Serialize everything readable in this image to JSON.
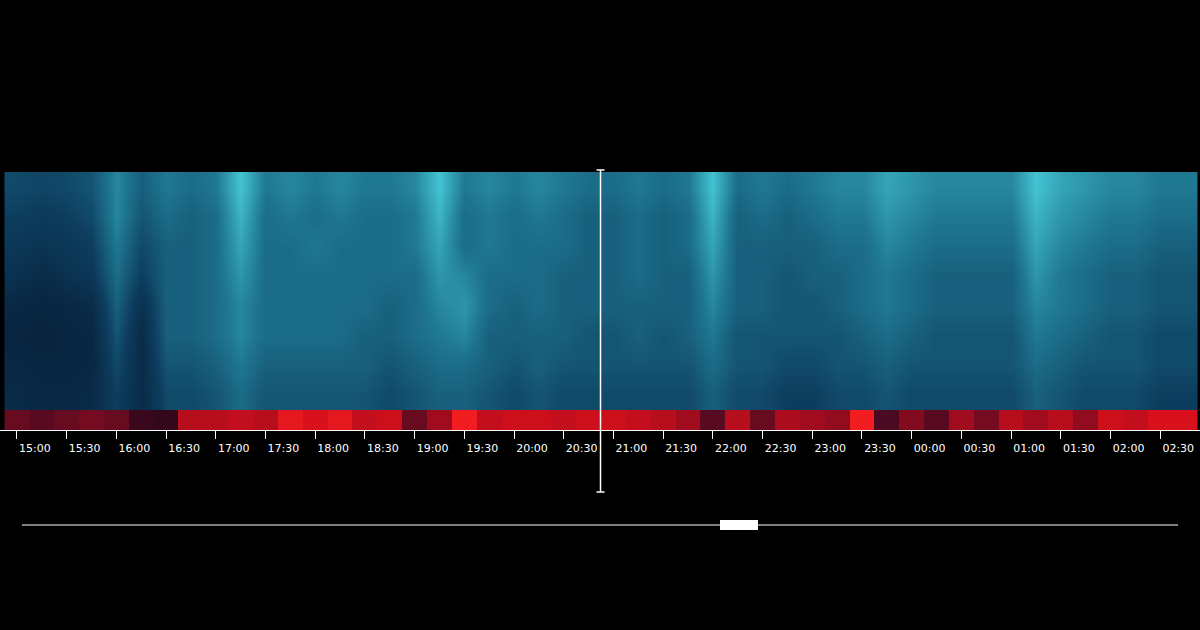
{
  "chart_data": {
    "type": "heatmap",
    "tick_labels": "x",
    "x": [
      15.0,
      15.25,
      15.5,
      15.75,
      16.0,
      16.25,
      16.5,
      16.75,
      17.0,
      17.25,
      17.5,
      17.75,
      18.0,
      18.25,
      18.5,
      18.75,
      19.0,
      19.25,
      19.5,
      19.75,
      20.0,
      20.25,
      20.5,
      20.75,
      21.0,
      21.25,
      21.5,
      21.75,
      22.0,
      22.25,
      22.5,
      22.75,
      23.0,
      23.25,
      23.5,
      23.75,
      24.0,
      24.25,
      24.5,
      24.75,
      25.0,
      25.25,
      25.5,
      25.75,
      26.0,
      26.25,
      26.5,
      26.75
    ],
    "xlim": [
      14.83,
      26.9
    ],
    "xticks": [
      {
        "value": 15.0,
        "label": "15:00"
      },
      {
        "value": 15.5,
        "label": "15:30"
      },
      {
        "value": 16.0,
        "label": "16:00"
      },
      {
        "value": 16.5,
        "label": "16:30"
      },
      {
        "value": 17.0,
        "label": "17:00"
      },
      {
        "value": 17.5,
        "label": "17:30"
      },
      {
        "value": 18.0,
        "label": "18:00"
      },
      {
        "value": 18.5,
        "label": "18:30"
      },
      {
        "value": 19.0,
        "label": "19:00"
      },
      {
        "value": 19.5,
        "label": "19:30"
      },
      {
        "value": 20.0,
        "label": "20:00"
      },
      {
        "value": 20.5,
        "label": "20:30"
      },
      {
        "value": 21.0,
        "label": "21:00"
      },
      {
        "value": 21.5,
        "label": "21:30"
      },
      {
        "value": 22.0,
        "label": "22:00"
      },
      {
        "value": 22.5,
        "label": "22:30"
      },
      {
        "value": 23.0,
        "label": "23:00"
      },
      {
        "value": 23.5,
        "label": "23:30"
      },
      {
        "value": 24.0,
        "label": "00:00"
      },
      {
        "value": 24.5,
        "label": "00:30"
      },
      {
        "value": 25.0,
        "label": "01:00"
      },
      {
        "value": 25.5,
        "label": "01:30"
      },
      {
        "value": 26.0,
        "label": "02:00"
      },
      {
        "value": 26.5,
        "label": "02:30"
      }
    ],
    "spectrogram": {
      "zlim": [
        0,
        1
      ],
      "z": [
        [
          0.15,
          0.12,
          0.12,
          0.15,
          0.3,
          0.15,
          0.35,
          0.35,
          0.4,
          0.5,
          0.4,
          0.4,
          0.4,
          0.4,
          0.4,
          0.35,
          0.4,
          0.45,
          0.45,
          0.4,
          0.35,
          0.4,
          0.35,
          0.35,
          0.35,
          0.35,
          0.35,
          0.35,
          0.45,
          0.35,
          0.35,
          0.3,
          0.3,
          0.35,
          0.35,
          0.4,
          0.35,
          0.35,
          0.35,
          0.35,
          0.35,
          0.45,
          0.4,
          0.35,
          0.35,
          0.35,
          0.3,
          0.3
        ],
        [
          0.12,
          0.1,
          0.1,
          0.12,
          0.35,
          0.15,
          0.4,
          0.4,
          0.45,
          0.55,
          0.45,
          0.45,
          0.45,
          0.45,
          0.45,
          0.4,
          0.45,
          0.5,
          0.5,
          0.45,
          0.4,
          0.45,
          0.4,
          0.4,
          0.4,
          0.4,
          0.4,
          0.4,
          0.5,
          0.4,
          0.4,
          0.35,
          0.35,
          0.4,
          0.4,
          0.45,
          0.4,
          0.4,
          0.4,
          0.4,
          0.4,
          0.5,
          0.45,
          0.4,
          0.4,
          0.4,
          0.35,
          0.35
        ],
        [
          0.1,
          0.08,
          0.1,
          0.12,
          0.4,
          0.15,
          0.45,
          0.45,
          0.5,
          0.6,
          0.5,
          0.5,
          0.5,
          0.5,
          0.45,
          0.45,
          0.5,
          0.55,
          0.6,
          0.45,
          0.45,
          0.45,
          0.45,
          0.4,
          0.4,
          0.45,
          0.4,
          0.45,
          0.55,
          0.4,
          0.4,
          0.4,
          0.4,
          0.4,
          0.45,
          0.5,
          0.45,
          0.4,
          0.4,
          0.4,
          0.4,
          0.55,
          0.5,
          0.45,
          0.4,
          0.4,
          0.35,
          0.35
        ],
        [
          0.12,
          0.1,
          0.12,
          0.15,
          0.45,
          0.2,
          0.45,
          0.45,
          0.5,
          0.6,
          0.5,
          0.5,
          0.5,
          0.5,
          0.5,
          0.45,
          0.5,
          0.6,
          0.65,
          0.5,
          0.45,
          0.5,
          0.45,
          0.45,
          0.45,
          0.45,
          0.45,
          0.45,
          0.6,
          0.45,
          0.45,
          0.4,
          0.4,
          0.45,
          0.5,
          0.55,
          0.5,
          0.45,
          0.45,
          0.45,
          0.45,
          0.6,
          0.55,
          0.5,
          0.45,
          0.45,
          0.4,
          0.4
        ],
        [
          0.2,
          0.15,
          0.2,
          0.25,
          0.5,
          0.3,
          0.45,
          0.45,
          0.5,
          0.65,
          0.5,
          0.5,
          0.5,
          0.5,
          0.5,
          0.5,
          0.5,
          0.65,
          0.6,
          0.5,
          0.5,
          0.5,
          0.45,
          0.45,
          0.45,
          0.5,
          0.45,
          0.45,
          0.65,
          0.45,
          0.45,
          0.4,
          0.45,
          0.45,
          0.5,
          0.55,
          0.5,
          0.45,
          0.45,
          0.45,
          0.45,
          0.65,
          0.55,
          0.5,
          0.45,
          0.45,
          0.4,
          0.4
        ],
        [
          0.25,
          0.22,
          0.25,
          0.3,
          0.55,
          0.35,
          0.45,
          0.45,
          0.5,
          0.7,
          0.5,
          0.5,
          0.55,
          0.5,
          0.5,
          0.5,
          0.55,
          0.7,
          0.5,
          0.55,
          0.5,
          0.5,
          0.5,
          0.45,
          0.45,
          0.5,
          0.45,
          0.5,
          0.7,
          0.45,
          0.45,
          0.45,
          0.45,
          0.5,
          0.5,
          0.6,
          0.55,
          0.5,
          0.5,
          0.5,
          0.5,
          0.7,
          0.6,
          0.55,
          0.5,
          0.5,
          0.45,
          0.45
        ],
        [
          0.3,
          0.28,
          0.3,
          0.35,
          0.6,
          0.4,
          0.5,
          0.45,
          0.5,
          0.75,
          0.5,
          0.55,
          0.5,
          0.55,
          0.5,
          0.5,
          0.55,
          0.75,
          0.5,
          0.55,
          0.5,
          0.55,
          0.5,
          0.45,
          0.45,
          0.5,
          0.45,
          0.5,
          0.75,
          0.45,
          0.5,
          0.45,
          0.5,
          0.55,
          0.55,
          0.65,
          0.6,
          0.55,
          0.55,
          0.55,
          0.55,
          0.75,
          0.65,
          0.6,
          0.55,
          0.55,
          0.5,
          0.5
        ],
        [
          0.35,
          0.33,
          0.35,
          0.4,
          0.6,
          0.45,
          0.55,
          0.5,
          0.55,
          0.8,
          0.55,
          0.6,
          0.55,
          0.6,
          0.55,
          0.55,
          0.6,
          0.8,
          0.55,
          0.6,
          0.55,
          0.6,
          0.55,
          0.5,
          0.5,
          0.55,
          0.5,
          0.55,
          0.8,
          0.5,
          0.55,
          0.5,
          0.55,
          0.6,
          0.6,
          0.7,
          0.65,
          0.6,
          0.6,
          0.6,
          0.6,
          0.8,
          0.7,
          0.65,
          0.6,
          0.6,
          0.55,
          0.55
        ]
      ]
    },
    "activity": {
      "zlim": [
        0,
        1
      ],
      "z": [
        0.4,
        0.35,
        0.4,
        0.45,
        0.4,
        0.2,
        0.15,
        0.7,
        0.7,
        0.75,
        0.7,
        0.9,
        0.85,
        0.9,
        0.75,
        0.8,
        0.4,
        0.6,
        0.95,
        0.75,
        0.8,
        0.8,
        0.75,
        0.8,
        0.8,
        0.75,
        0.7,
        0.6,
        0.35,
        0.7,
        0.4,
        0.65,
        0.6,
        0.55,
        0.95,
        0.3,
        0.5,
        0.35,
        0.6,
        0.45,
        0.7,
        0.6,
        0.7,
        0.55,
        0.8,
        0.75,
        0.85,
        0.85
      ]
    },
    "cursor_x": 20.87
  }
}
